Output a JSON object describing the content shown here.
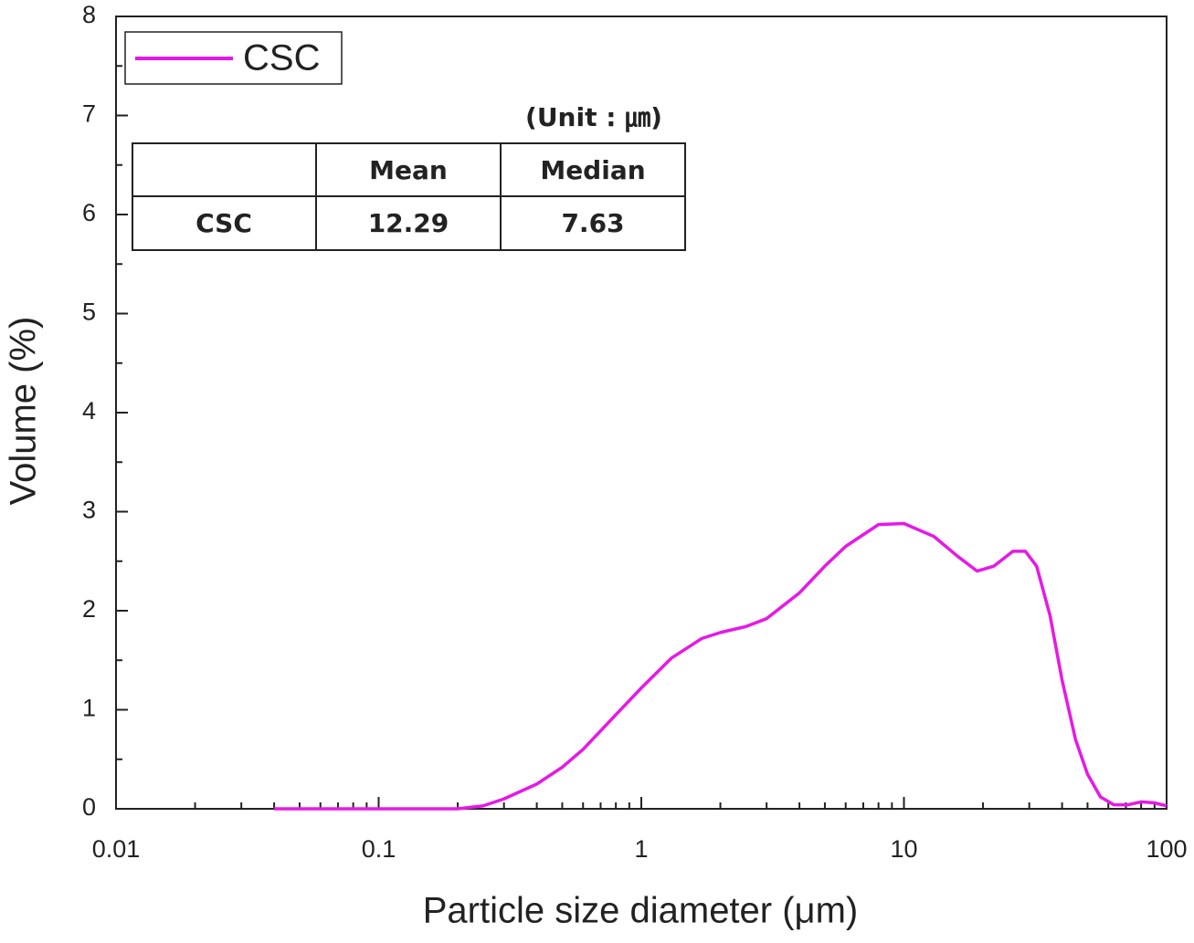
{
  "chart_data": {
    "type": "line",
    "xlabel": "Particle size diameter (μm)",
    "ylabel": "Volume (%)",
    "xscale": "log",
    "xlim": [
      0.01,
      100
    ],
    "xticks": [
      0.01,
      0.1,
      1,
      10,
      100
    ],
    "ylim": [
      0,
      8
    ],
    "yticks": [
      0,
      1,
      2,
      3,
      4,
      5,
      6,
      7,
      8
    ],
    "legend": "upper left",
    "series": [
      {
        "name": "CSC",
        "color": "#e619e6",
        "x": [
          0.04,
          0.06,
          0.1,
          0.15,
          0.2,
          0.25,
          0.3,
          0.4,
          0.5,
          0.6,
          0.8,
          1,
          1.3,
          1.7,
          2,
          2.5,
          3,
          4,
          5,
          6,
          8,
          10,
          13,
          16,
          19,
          22,
          26,
          29,
          32,
          36,
          40,
          45,
          50,
          56,
          63,
          71,
          80,
          90,
          100
        ],
        "values": [
          0,
          0,
          0,
          0,
          0,
          0.03,
          0.1,
          0.25,
          0.42,
          0.6,
          0.95,
          1.22,
          1.52,
          1.72,
          1.78,
          1.84,
          1.92,
          2.18,
          2.45,
          2.65,
          2.87,
          2.88,
          2.75,
          2.55,
          2.4,
          2.45,
          2.6,
          2.6,
          2.45,
          1.95,
          1.3,
          0.7,
          0.35,
          0.12,
          0.04,
          0.04,
          0.07,
          0.06,
          0.03
        ]
      }
    ],
    "table": {
      "unit": "(Unit : ㎛)",
      "header": [
        "Mean",
        "Median"
      ],
      "rows": [
        [
          "CSC",
          12.29,
          7.63
        ]
      ]
    }
  }
}
